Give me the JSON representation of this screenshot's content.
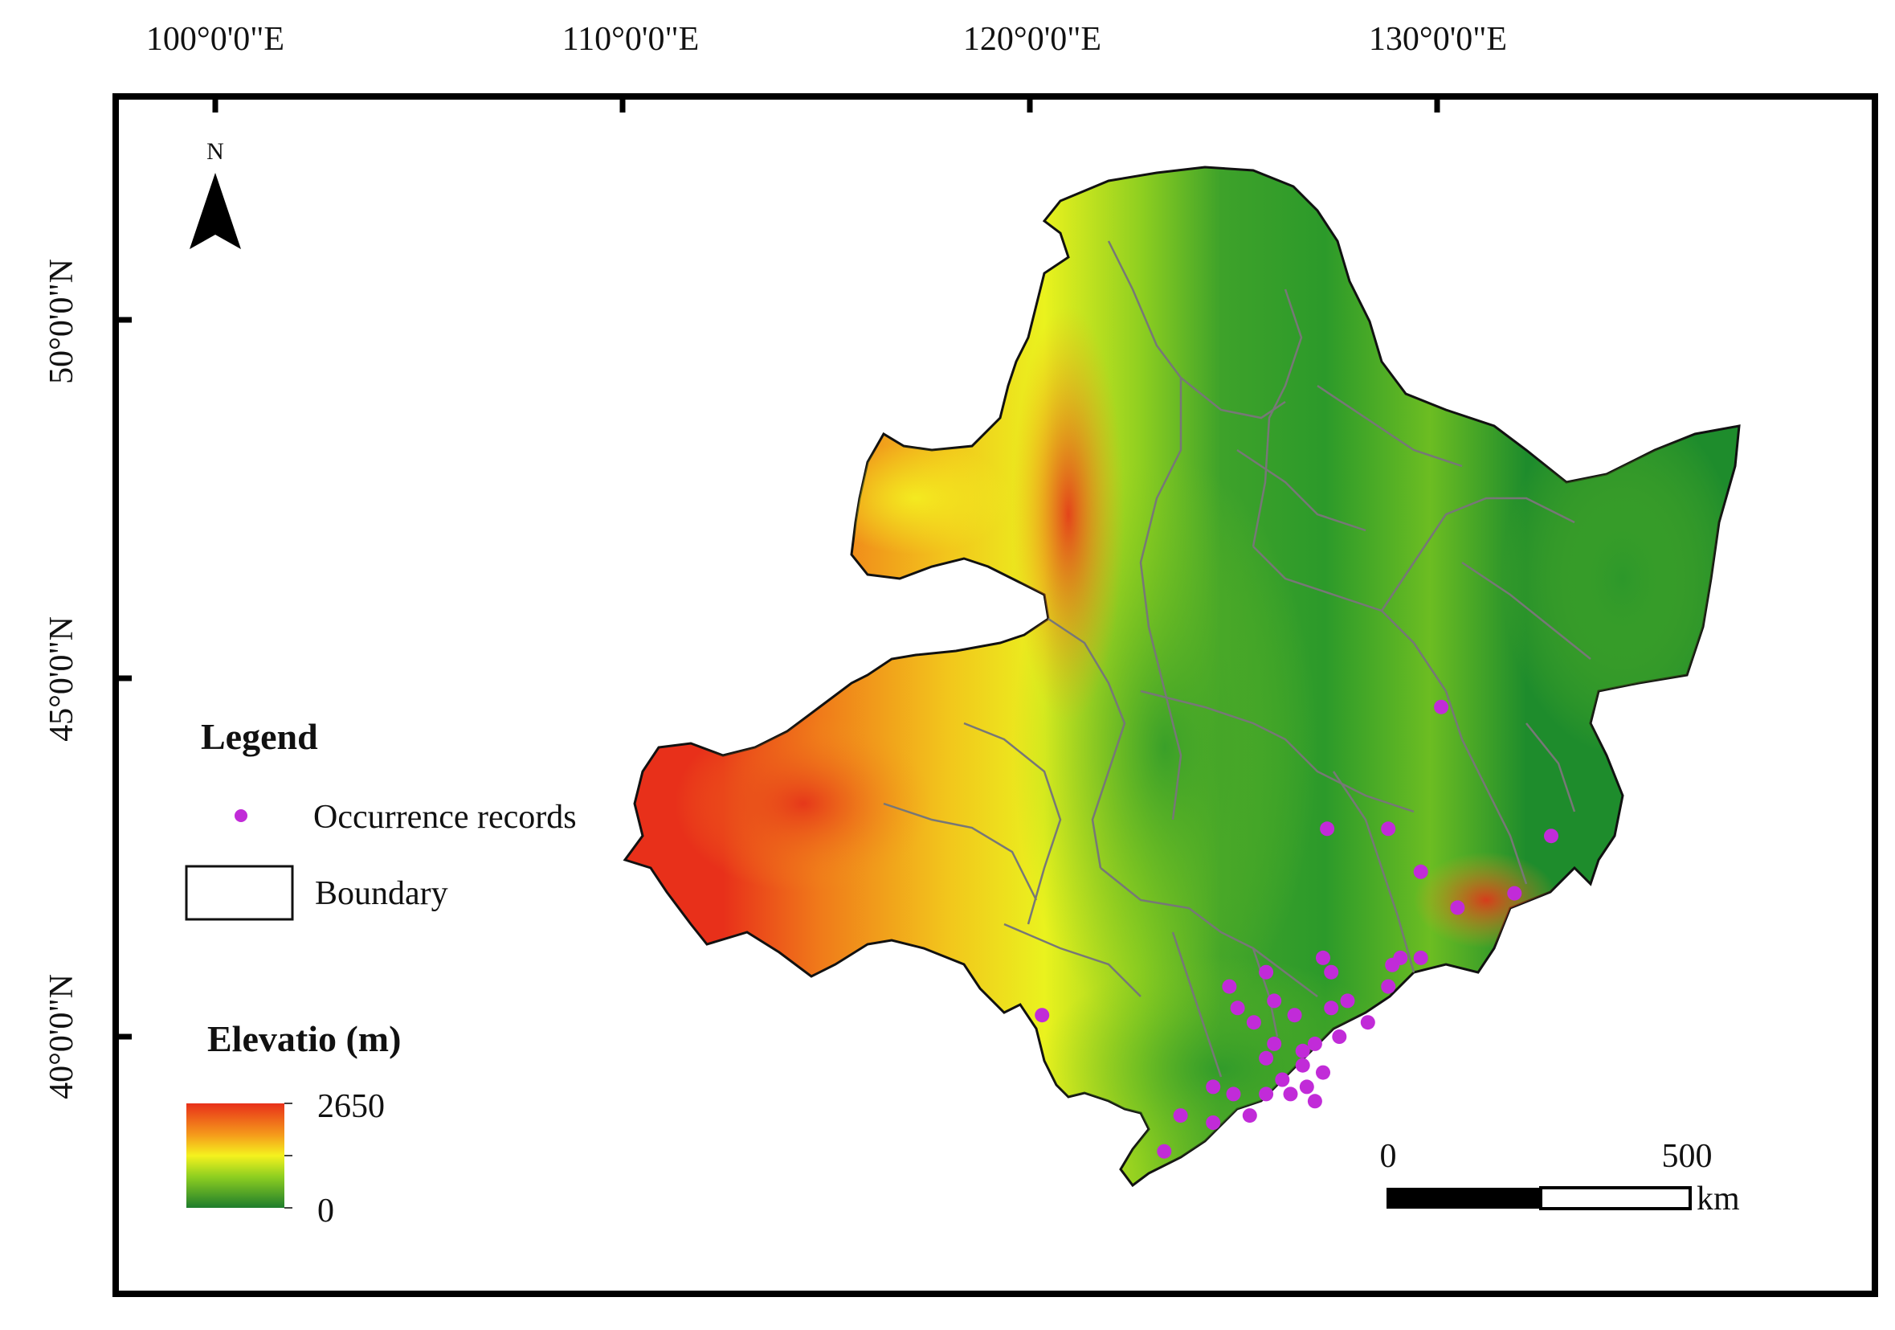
{
  "map": {
    "longitude_labels": [
      "100°0'0\"E",
      "110°0'0\"E",
      "120°0'0\"E",
      "130°0'0\"E"
    ],
    "latitude_labels": [
      "50°0'0\"N",
      "45°0'0\"N",
      "40°0'0\"N"
    ],
    "north_arrow_label": "N",
    "legend": {
      "title": "Legend",
      "occurrence_label": "Occurrence records",
      "boundary_label": "Boundary",
      "elevation_title": "Elevatio (m)",
      "elevation_max": "2650",
      "elevation_min": "0"
    },
    "scale_bar": {
      "start": "0",
      "end": "500",
      "unit": "km"
    },
    "colors": {
      "high": "#e8301a",
      "mid_high": "#f7a21b",
      "mid": "#f2f21e",
      "mid_low": "#7fc41e",
      "low": "#1e8c2c",
      "occurrence": "#c12bd8",
      "boundary": "#777777"
    },
    "occurrence_points": [
      [
        130.1,
        44.6
      ],
      [
        127.3,
        42.9
      ],
      [
        128.8,
        42.9
      ],
      [
        132.8,
        42.8
      ],
      [
        129.6,
        42.3
      ],
      [
        131.9,
        42.0
      ],
      [
        130.5,
        41.8
      ],
      [
        120.3,
        40.3
      ],
      [
        124.9,
        40.7
      ],
      [
        125.8,
        40.9
      ],
      [
        127.2,
        41.1
      ],
      [
        127.4,
        40.9
      ],
      [
        128.9,
        41.0
      ],
      [
        129.1,
        41.1
      ],
      [
        129.6,
        41.1
      ],
      [
        128.8,
        40.7
      ],
      [
        127.8,
        40.5
      ],
      [
        127.4,
        40.4
      ],
      [
        126.0,
        40.5
      ],
      [
        125.1,
        40.4
      ],
      [
        125.5,
        40.2
      ],
      [
        126.5,
        40.3
      ],
      [
        126.0,
        39.9
      ],
      [
        126.7,
        39.8
      ],
      [
        127.0,
        39.9
      ],
      [
        127.6,
        40.0
      ],
      [
        128.3,
        40.2
      ],
      [
        125.8,
        39.7
      ],
      [
        126.7,
        39.6
      ],
      [
        127.2,
        39.5
      ],
      [
        126.2,
        39.4
      ],
      [
        126.8,
        39.3
      ],
      [
        124.5,
        39.3
      ],
      [
        125.0,
        39.2
      ],
      [
        125.8,
        39.2
      ],
      [
        126.4,
        39.2
      ],
      [
        127.0,
        39.1
      ],
      [
        123.7,
        38.9
      ],
      [
        124.5,
        38.8
      ],
      [
        125.4,
        38.9
      ],
      [
        123.3,
        38.4
      ]
    ]
  }
}
